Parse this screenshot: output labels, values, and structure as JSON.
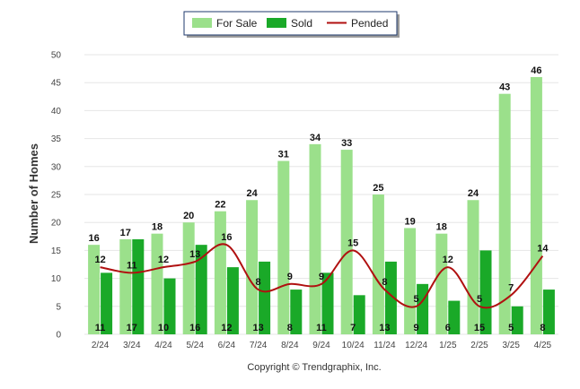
{
  "chart_data": {
    "type": "bar",
    "categories": [
      "2/24",
      "3/24",
      "4/24",
      "5/24",
      "6/24",
      "7/24",
      "8/24",
      "9/24",
      "10/24",
      "11/24",
      "12/24",
      "1/25",
      "2/25",
      "3/25",
      "4/25"
    ],
    "series": [
      {
        "name": "For Sale",
        "kind": "bar",
        "color": "#9be08b",
        "values": [
          16,
          17,
          18,
          20,
          22,
          24,
          31,
          34,
          33,
          25,
          19,
          18,
          24,
          43,
          46
        ]
      },
      {
        "name": "Sold",
        "kind": "bar",
        "color": "#1aa928",
        "values": [
          11,
          17,
          10,
          16,
          12,
          13,
          8,
          11,
          7,
          13,
          9,
          6,
          15,
          5,
          8
        ]
      },
      {
        "name": "Pended",
        "kind": "line",
        "color": "#b01010",
        "values": [
          12,
          11,
          12,
          13,
          16,
          8,
          9,
          9,
          15,
          8,
          5,
          12,
          5,
          7,
          14
        ]
      }
    ],
    "ylabel": "Number of Homes",
    "xlabel": "",
    "ylim": [
      0,
      50
    ],
    "yticks": [
      0,
      5,
      10,
      15,
      20,
      25,
      30,
      35,
      40,
      45,
      50
    ],
    "grid": true,
    "legend_position": "top-center",
    "footer": "Copyright © Trendgraphix, Inc."
  }
}
